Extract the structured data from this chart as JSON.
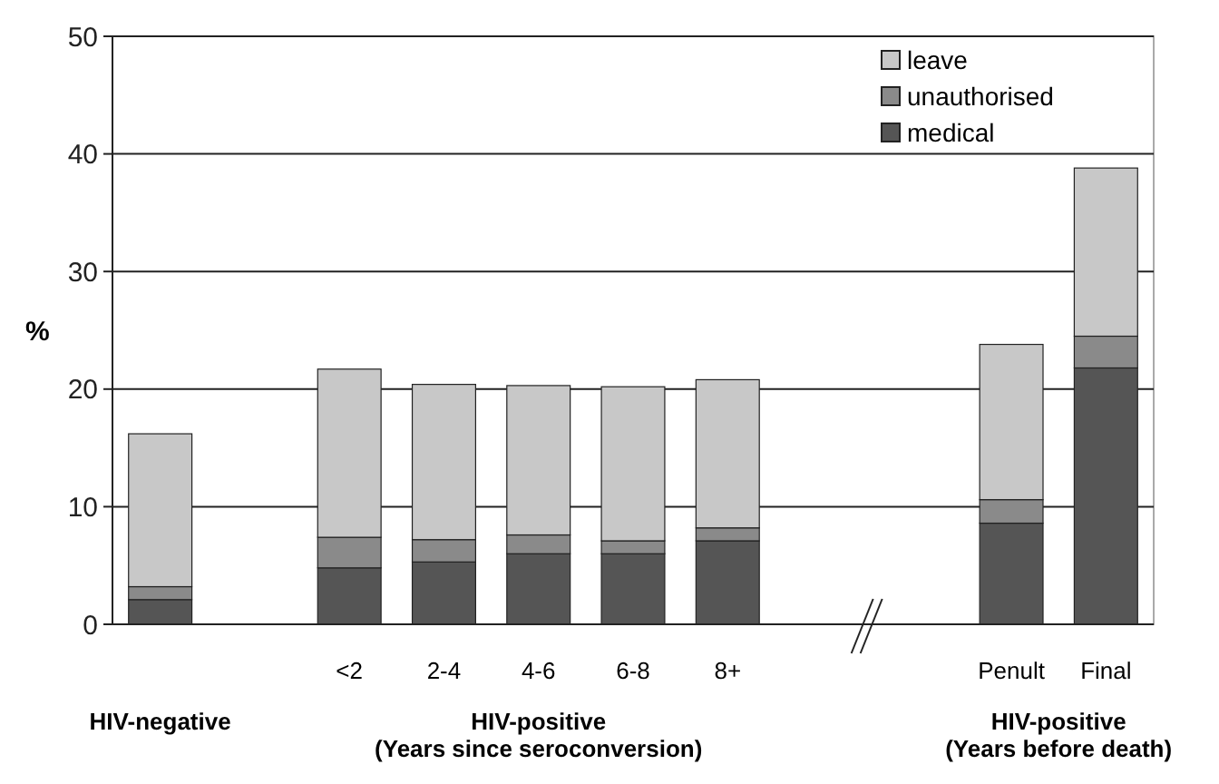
{
  "chart_data": {
    "type": "bar",
    "stacked": true,
    "ylabel": "%",
    "categories": [
      null,
      null,
      "<2",
      "2-4",
      "4-6",
      "6-8",
      "8+",
      null,
      null,
      "Penult",
      "Final"
    ],
    "series": [
      {
        "name": "medical",
        "color": "#555555",
        "values": [
          2.1,
          null,
          4.8,
          5.3,
          6.0,
          6.0,
          7.1,
          null,
          null,
          8.6,
          21.8
        ]
      },
      {
        "name": "unauthorised",
        "color": "#8a8a8a",
        "values": [
          1.1,
          null,
          2.6,
          1.9,
          1.6,
          1.1,
          1.1,
          null,
          null,
          2.0,
          2.7
        ]
      },
      {
        "name": "leave",
        "color": "#c8c8c8",
        "values": [
          13.0,
          null,
          14.3,
          13.2,
          12.7,
          13.1,
          12.6,
          null,
          null,
          13.2,
          14.3
        ]
      }
    ],
    "ylim": [
      0,
      50
    ],
    "yticks": [
      0,
      10,
      20,
      30,
      40,
      50
    ],
    "grid": "y",
    "legend": "top right",
    "annotations": [
      "HIV-negative",
      "HIV-positive\n(Years since seroconversion)",
      "HIV-positive\n(Years before death)"
    ]
  }
}
